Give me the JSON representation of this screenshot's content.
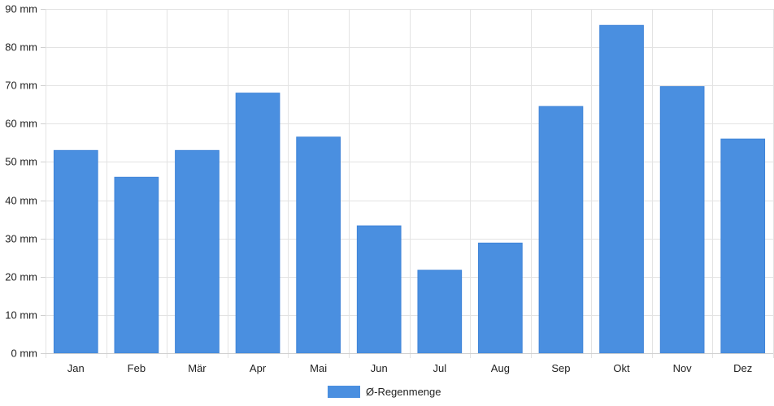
{
  "chart_data": {
    "type": "bar",
    "categories": [
      "Jan",
      "Feb",
      "Mär",
      "Apr",
      "Mai",
      "Jun",
      "Jul",
      "Aug",
      "Sep",
      "Okt",
      "Nov",
      "Dez"
    ],
    "series": [
      {
        "name": "Ø-Regenmenge",
        "color": "#4a8fe0",
        "values": [
          53,
          46,
          53,
          68,
          56.5,
          33.3,
          21.7,
          28.8,
          64.5,
          85.7,
          69.7,
          56
        ]
      }
    ],
    "title": "",
    "xlabel": "",
    "ylabel": "",
    "ylim": [
      0,
      90
    ],
    "ytick_step": 10,
    "yunit": "mm",
    "grid": true,
    "legend_position": "bottom"
  }
}
